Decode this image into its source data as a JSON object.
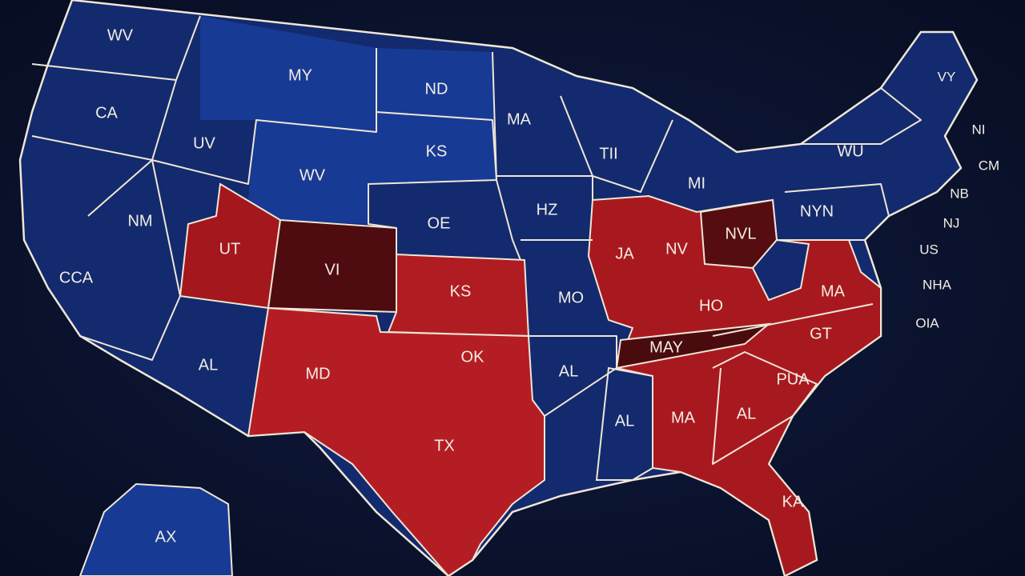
{
  "labels": [
    "WV",
    "MY",
    "ND",
    "CA",
    "UV",
    "KS",
    "MA",
    "TII",
    "WV",
    "MI",
    "NM",
    "UT",
    "VI",
    "OE",
    "KS",
    "HZ",
    "JA",
    "NV",
    "NVL",
    "NYN",
    "WU",
    "NI",
    "CM",
    "VY",
    "NB",
    "NJ",
    "US",
    "MA",
    "NHA",
    "OIA",
    "OK",
    "MO",
    "HO",
    "GT",
    "MAY",
    "AL",
    "MD",
    "AL",
    "PUA",
    "AL",
    "MA",
    "AL",
    "TX",
    "KA",
    "AX",
    "CCA"
  ]
}
